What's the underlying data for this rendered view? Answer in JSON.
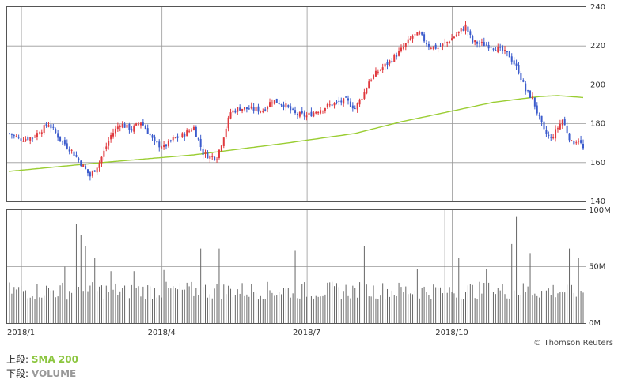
{
  "legend": {
    "top_prefix": "上段:",
    "top_value": "SMA 200",
    "bottom_prefix": "下段:",
    "bottom_value": "VOLUME"
  },
  "credit": "© Thomson Reuters",
  "colors": {
    "up": "#e0393e",
    "down": "#3b5bcc",
    "sma": "#9acd32",
    "volume": "#666666",
    "grid": "#999999",
    "frame": "#555555"
  },
  "chart_data": [
    {
      "type": "candlestick",
      "title": "",
      "ylim": [
        140,
        240
      ],
      "yticks": [
        140,
        160,
        180,
        200,
        220,
        240
      ],
      "xtick_labels": [
        "2018/1",
        "2018/4",
        "2018/7",
        "2018/10"
      ],
      "xtick_index": [
        5,
        66,
        129,
        192
      ],
      "total_days": 250,
      "close_anchors": [
        [
          0,
          175
        ],
        [
          5,
          172
        ],
        [
          10,
          173
        ],
        [
          17,
          180
        ],
        [
          22,
          172
        ],
        [
          27,
          166
        ],
        [
          32,
          158
        ],
        [
          35,
          153
        ],
        [
          39,
          160
        ],
        [
          44,
          174
        ],
        [
          48,
          180
        ],
        [
          53,
          177
        ],
        [
          57,
          181
        ],
        [
          60,
          176
        ],
        [
          63,
          170
        ],
        [
          67,
          168
        ],
        [
          71,
          172
        ],
        [
          75,
          174
        ],
        [
          80,
          178
        ],
        [
          84,
          165
        ],
        [
          87,
          163
        ],
        [
          90,
          163
        ],
        [
          92,
          170
        ],
        [
          96,
          186
        ],
        [
          100,
          188
        ],
        [
          110,
          187
        ],
        [
          114,
          192
        ],
        [
          119,
          190
        ],
        [
          124,
          185
        ],
        [
          129,
          184
        ],
        [
          134,
          187
        ],
        [
          140,
          190
        ],
        [
          146,
          192
        ],
        [
          150,
          188
        ],
        [
          154,
          196
        ],
        [
          156,
          202
        ],
        [
          160,
          207
        ],
        [
          165,
          212
        ],
        [
          170,
          218
        ],
        [
          175,
          225
        ],
        [
          178,
          226
        ],
        [
          182,
          220
        ],
        [
          186,
          219
        ],
        [
          190,
          222
        ],
        [
          194,
          226
        ],
        [
          198,
          230
        ],
        [
          201,
          222
        ],
        [
          205,
          221
        ],
        [
          209,
          220
        ],
        [
          213,
          218
        ],
        [
          217,
          215
        ],
        [
          221,
          207
        ],
        [
          224,
          197
        ],
        [
          227,
          193
        ],
        [
          229,
          186
        ],
        [
          232,
          176
        ],
        [
          235,
          172
        ],
        [
          238,
          178
        ],
        [
          240,
          182
        ],
        [
          242,
          176
        ],
        [
          244,
          170
        ],
        [
          247,
          172
        ],
        [
          249,
          167
        ]
      ],
      "sma_anchors": [
        [
          0,
          155.5
        ],
        [
          40,
          160
        ],
        [
          80,
          164
        ],
        [
          120,
          170
        ],
        [
          150,
          175
        ],
        [
          170,
          181
        ],
        [
          190,
          186
        ],
        [
          210,
          191
        ],
        [
          230,
          194
        ],
        [
          238,
          194.5
        ],
        [
          249,
          193.5
        ]
      ],
      "series": [
        {
          "name": "SMA 200",
          "kind": "line"
        }
      ]
    },
    {
      "type": "bar",
      "title": "VOLUME",
      "ylim": [
        0,
        100
      ],
      "yticks": [
        0,
        50,
        100
      ],
      "ytick_labels": [
        "0M",
        "50M",
        "100M"
      ],
      "base_volume_M": 28,
      "spikes_M": [
        [
          24,
          50
        ],
        [
          29,
          88
        ],
        [
          31,
          78
        ],
        [
          33,
          68
        ],
        [
          37,
          58
        ],
        [
          44,
          46
        ],
        [
          54,
          46
        ],
        [
          67,
          47
        ],
        [
          83,
          66
        ],
        [
          91,
          66
        ],
        [
          124,
          64
        ],
        [
          154,
          68
        ],
        [
          177,
          48
        ],
        [
          189,
          100
        ],
        [
          195,
          58
        ],
        [
          207,
          48
        ],
        [
          218,
          70
        ],
        [
          220,
          94
        ],
        [
          226,
          62
        ],
        [
          243,
          66
        ],
        [
          247,
          58
        ]
      ]
    }
  ]
}
